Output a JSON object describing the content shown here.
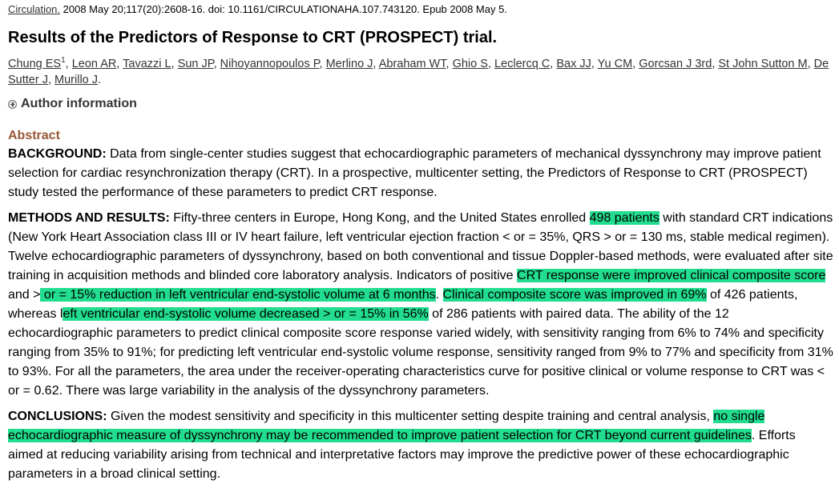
{
  "citation": {
    "journal": "Circulation.",
    "details": " 2008 May 20;117(20):2608-16. doi: 10.1161/CIRCULATIONAHA.107.743120. Epub 2008 May 5."
  },
  "title": "Results of the Predictors of Response to CRT (PROSPECT) trial.",
  "authors": [
    {
      "name": "Chung ES",
      "sup": "1"
    },
    {
      "name": "Leon AR"
    },
    {
      "name": "Tavazzi L"
    },
    {
      "name": "Sun JP"
    },
    {
      "name": "Nihoyannopoulos P"
    },
    {
      "name": "Merlino J"
    },
    {
      "name": "Abraham WT"
    },
    {
      "name": "Ghio S"
    },
    {
      "name": "Leclercq C"
    },
    {
      "name": "Bax JJ"
    },
    {
      "name": "Yu CM"
    },
    {
      "name": "Gorcsan J 3rd"
    },
    {
      "name": "St John Sutton M"
    },
    {
      "name": "De Sutter J"
    },
    {
      "name": "Murillo J"
    }
  ],
  "author_info_label": "Author information",
  "abstract": {
    "heading": "Abstract",
    "background": {
      "label": "BACKGROUND:",
      "text": " Data from single-center studies suggest that echocardiographic parameters of mechanical dyssynchrony may improve patient selection for cardiac resynchronization therapy (CRT). In a prospective, multicenter setting, the Predictors of Response to CRT (PROSPECT) study tested the performance of these parameters to predict CRT response."
    },
    "methods": {
      "label": "METHODS AND RESULTS:",
      "t1": " Fifty-three centers in Europe, Hong Kong, and the United States enrolled ",
      "h1": "498 patients",
      "t2": " with standard CRT indications (New York Heart Association class III or IV heart failure, left ventricular ejection fraction < or = 35%, QRS > or = 130 ms, stable medical regimen). Twelve echocardiographic parameters of dyssynchrony, based on both conventional and tissue Doppler-based methods, were evaluated after site training in acquisition methods and blinded core laboratory analysis. Indicators of positive ",
      "h2": "CRT response were improved clinical composite score",
      "t3": " and >",
      "h3": " or = 15% reduction in left ventricular end-systolic volume at 6 months",
      "t4": ". ",
      "h4": "Clinical composite score was improved in 69%",
      "t5": " of 426 patients, whereas l",
      "h5": "eft ventricular end-systolic volume decreased > or = 15% in 56%",
      "t6": " of 286 patients with paired data. The ability of the 12 echocardiographic parameters to predict clinical composite score response varied widely, with sensitivity ranging from 6% to 74% and specificity ranging from 35% to 91%; for predicting left ventricular end-systolic volume response, sensitivity ranged from 9% to 77% and specificity from 31% to 93%. For all the parameters, the area under the receiver-operating characteristics curve for positive clinical or volume response to CRT was < or = 0.62. There was large variability in the analysis of the dyssynchrony parameters."
    },
    "conclusions": {
      "label": "CONCLUSIONS:",
      "t1": " Given the modest sensitivity and specificity in this multicenter setting despite training and central analysis, ",
      "h1": "no single echocardiographic measure of dyssynchrony may be recommended to improve patient selection for CRT beyond current guidelines",
      "t2": ". Efforts aimed at reducing variability arising from technical and interpretative factors may improve the predictive power of these echocardiographic parameters in a broad clinical setting."
    }
  },
  "colors": {
    "highlight": "#22dd8f",
    "abstract_heading": "#985735",
    "link": "#333333"
  },
  "icons": {
    "expand": "plus-circle-icon"
  }
}
